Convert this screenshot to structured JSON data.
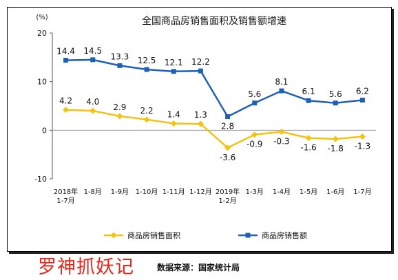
{
  "chart_data": {
    "type": "line",
    "title": "全国商品房销售面积及销售额增速",
    "unit_label": "(%)",
    "ylim": [
      -10,
      20
    ],
    "yticks": [
      "20",
      "10",
      "0",
      "-10"
    ],
    "categories": [
      [
        "2018年",
        "1-7月"
      ],
      [
        "1-8月"
      ],
      [
        "1-9月"
      ],
      [
        "1-10月"
      ],
      [
        "1-11月"
      ],
      [
        "1-12月"
      ],
      [
        "2019年",
        "1-2月"
      ],
      [
        "1-3月"
      ],
      [
        "1-4月"
      ],
      [
        "1-5月"
      ],
      [
        "1-6月"
      ],
      [
        "1-7月"
      ]
    ],
    "series": [
      {
        "name": "商品房销售额",
        "color": "#1f5fb4",
        "marker": "square",
        "values": [
          14.4,
          14.5,
          13.3,
          12.5,
          12.1,
          12.2,
          2.8,
          5.6,
          8.1,
          6.1,
          5.6,
          6.2
        ],
        "labels": [
          "14.4",
          "14.5",
          "13.3",
          "12.5",
          "12.1",
          "12.2",
          "2.8",
          "5.6",
          "8.1",
          "6.1",
          "5.6",
          "6.2"
        ]
      },
      {
        "name": "商品房销售面积",
        "color": "#f2c312",
        "marker": "diamond",
        "values": [
          4.2,
          4.0,
          2.9,
          2.2,
          1.4,
          1.3,
          -3.6,
          -0.9,
          -0.3,
          -1.6,
          -1.8,
          -1.3
        ],
        "labels": [
          "4.2",
          "4.0",
          "2.9",
          "2.2",
          "1.4",
          "1.3",
          "-3.6",
          "-0.9",
          "-0.3",
          "-1.6",
          "-1.8",
          "-1.3"
        ]
      }
    ],
    "legend_position": "bottom",
    "grid": false
  },
  "footer": {
    "watermark": "罗神抓妖记",
    "source": "数据来源：国家统计局"
  }
}
